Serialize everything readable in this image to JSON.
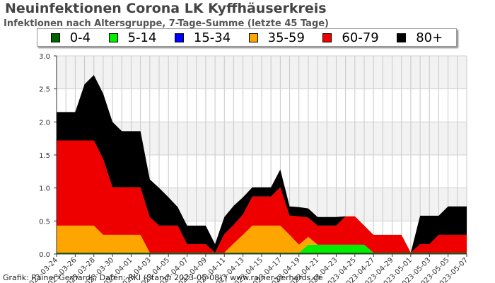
{
  "header": {
    "title": "Neuinfektionen Corona LK Kyffhäuserkreis",
    "subtitle": "Infektionen nach Altersgruppe, 7-Tage-Summe (letzte 45 Tage)"
  },
  "footer": {
    "credit": "Grafik: Rainer Gerhards, Daten: RKI (Stand: 2023-05-08) | www.rainer-gerhards.de"
  },
  "chart_data": {
    "type": "area",
    "stacked": true,
    "xlabel": "",
    "ylabel": "",
    "ylim": [
      0,
      3.0
    ],
    "yticks": [
      "0.0",
      "0.5",
      "1.0",
      "1.5",
      "2.0",
      "2.5",
      "3.0"
    ],
    "grid": true,
    "legend_position": "top",
    "x": [
      "2023-03-24",
      "2023-03-25",
      "2023-03-26",
      "2023-03-27",
      "2023-03-28",
      "2023-03-29",
      "2023-03-30",
      "2023-03-31",
      "2023-04-01",
      "2023-04-02",
      "2023-04-03",
      "2023-04-04",
      "2023-04-05",
      "2023-04-06",
      "2023-04-07",
      "2023-04-08",
      "2023-04-09",
      "2023-04-10",
      "2023-04-11",
      "2023-04-12",
      "2023-04-13",
      "2023-04-14",
      "2023-04-15",
      "2023-04-16",
      "2023-04-17",
      "2023-04-18",
      "2023-04-19",
      "2023-04-20",
      "2023-04-21",
      "2023-04-22",
      "2023-04-23",
      "2023-04-24",
      "2023-04-25",
      "2023-04-26",
      "2023-04-27",
      "2023-04-28",
      "2023-04-29",
      "2023-04-30",
      "2023-05-01",
      "2023-05-02",
      "2023-05-03",
      "2023-05-04",
      "2023-05-05",
      "2023-05-06",
      "2023-05-07"
    ],
    "xtick_labels": [
      "2023-03-24",
      "2023-03-26",
      "2023-03-28",
      "2023-03-30",
      "2023-04-01",
      "2023-04-03",
      "2023-04-05",
      "2023-04-07",
      "2023-04-09",
      "2023-04-11",
      "2023-04-13",
      "2023-04-15",
      "2023-04-17",
      "2023-04-19",
      "2023-04-21",
      "2023-04-23",
      "2023-04-25",
      "2023-04-27",
      "2023-04-29",
      "2023-05-01",
      "2023-05-03",
      "2023-05-05",
      "2023-05-07"
    ],
    "series": [
      {
        "name": "0-4",
        "color": "#006400",
        "values": [
          0.02,
          0.02,
          0.02,
          0.02,
          0.02,
          0.02,
          0.02,
          0.02,
          0.02,
          0.02,
          0.02,
          0.02,
          0.02,
          0.02,
          0.02,
          0.02,
          0.02,
          0.02,
          0.02,
          0.02,
          0.02,
          0.02,
          0.02,
          0.02,
          0.02,
          0.02,
          0.02,
          0.02,
          0.02,
          0.02,
          0.02,
          0.02,
          0.02,
          0.02,
          0.02,
          0.02,
          0.02,
          0.02,
          0.02,
          0.02,
          0.02,
          0.02,
          0.02,
          0.02,
          0.02
        ]
      },
      {
        "name": "5-14",
        "color": "#00ee00",
        "values": [
          0,
          0,
          0,
          0,
          0,
          0,
          0,
          0,
          0,
          0,
          0,
          0,
          0,
          0,
          0,
          0,
          0,
          0,
          0,
          0,
          0,
          0,
          0,
          0,
          0,
          0,
          0,
          0.12,
          0.12,
          0.12,
          0.12,
          0.12,
          0.12,
          0.12,
          0,
          0,
          0,
          0,
          0,
          0,
          0,
          0,
          0,
          0,
          0
        ]
      },
      {
        "name": "15-34",
        "color": "#0000ff",
        "values": [
          0,
          0,
          0,
          0,
          0,
          0,
          0,
          0,
          0,
          0,
          0,
          0,
          0,
          0,
          0,
          0,
          0,
          0,
          0,
          0,
          0,
          0,
          0,
          0,
          0,
          0,
          0,
          0,
          0,
          0,
          0,
          0,
          0,
          0,
          0,
          0,
          0,
          0,
          0,
          0,
          0,
          0,
          0,
          0,
          0
        ]
      },
      {
        "name": "35-59",
        "color": "#ffa500",
        "values": [
          0.41,
          0.41,
          0.41,
          0.41,
          0.41,
          0.27,
          0.27,
          0.27,
          0.27,
          0.27,
          0,
          0,
          0,
          0,
          0,
          0,
          0,
          0,
          0,
          0.14,
          0.27,
          0.41,
          0.41,
          0.41,
          0.41,
          0.27,
          0.12,
          0.12,
          0,
          0,
          0,
          0,
          0,
          0,
          0,
          0,
          0,
          0,
          0,
          0,
          0,
          0,
          0,
          0,
          0
        ]
      },
      {
        "name": "60-79",
        "color": "#ee0000",
        "values": [
          1.29,
          1.29,
          1.29,
          1.29,
          1.29,
          1.15,
          0.72,
          0.72,
          0.72,
          0.72,
          0.54,
          0.41,
          0.41,
          0.41,
          0.13,
          0.13,
          0.13,
          0,
          0.28,
          0.28,
          0.31,
          0.44,
          0.44,
          0.44,
          0.58,
          0.29,
          0.43,
          0.29,
          0.29,
          0.29,
          0.29,
          0.43,
          0.43,
          0.29,
          0.27,
          0.27,
          0.27,
          0.27,
          0,
          0.13,
          0.13,
          0.27,
          0.27,
          0.27,
          0.27
        ]
      },
      {
        "name": "80+",
        "color": "#000000",
        "values": [
          0.43,
          0.43,
          0.43,
          0.85,
          0.99,
          0.99,
          0.99,
          0.85,
          0.85,
          0.85,
          0.57,
          0.57,
          0.43,
          0.28,
          0.28,
          0.28,
          0.28,
          0.13,
          0.26,
          0.29,
          0.26,
          0.14,
          0.14,
          0.14,
          0.27,
          0.14,
          0.14,
          0.14,
          0.13,
          0.13,
          0.13,
          0,
          0,
          0,
          0,
          0,
          0,
          0,
          0,
          0.43,
          0.43,
          0.29,
          0.43,
          0.43,
          0.43
        ]
      }
    ]
  }
}
